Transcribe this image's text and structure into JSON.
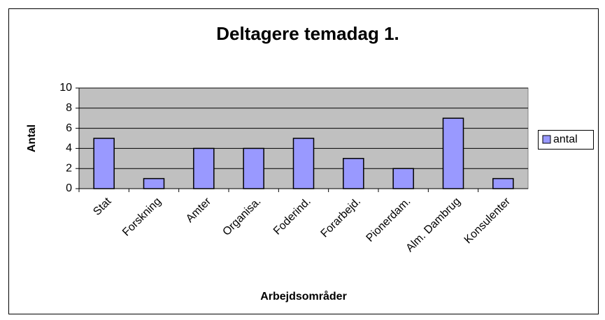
{
  "chart_data": {
    "type": "bar",
    "title": "Deltagere temadag 1.",
    "x_label": "Arbejdsområder",
    "y_label": "Antal",
    "categories": [
      "Stat",
      "Forskning",
      "Amter",
      "Organisa.",
      "Foderind.",
      "Forarbejd.",
      "Pionerdam.",
      "Alm. Dambrug",
      "Konsulenter"
    ],
    "series": [
      {
        "name": "antal",
        "color": "#9999ff",
        "values": [
          5,
          1,
          4,
          4,
          5,
          3,
          2,
          7,
          1
        ]
      }
    ],
    "ylim": [
      0,
      10
    ],
    "yticks": [
      0,
      2,
      4,
      6,
      8,
      10
    ],
    "grid": true,
    "legend": "right"
  }
}
